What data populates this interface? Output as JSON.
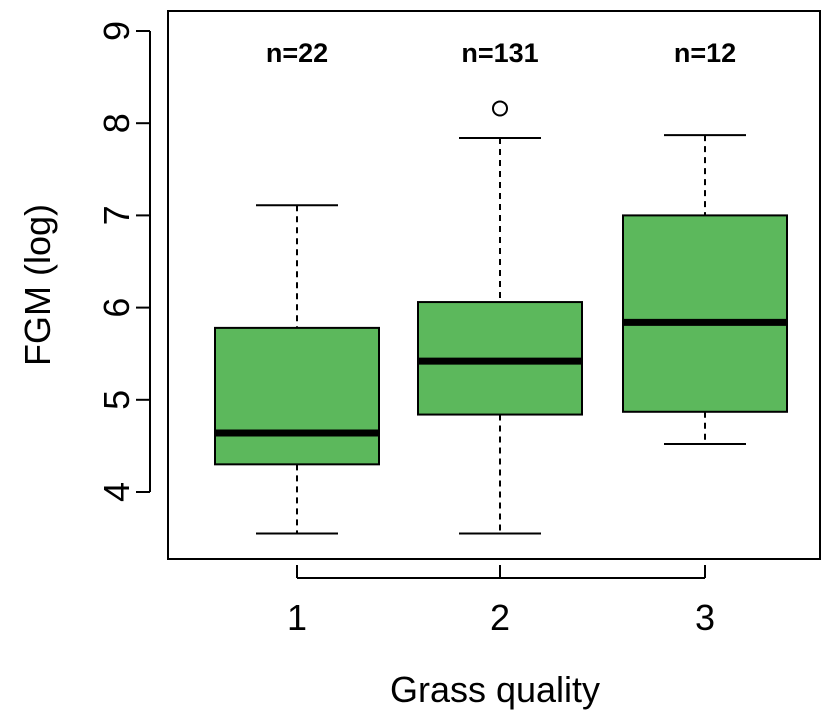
{
  "chart_data": {
    "type": "boxplot",
    "xlabel": "Grass quality",
    "ylabel": "FGM (log)",
    "categories": [
      "1",
      "2",
      "3"
    ],
    "ylim": [
      3.3,
      9.2
    ],
    "yticks": [
      "4",
      "5",
      "6",
      "7",
      "8",
      "9"
    ],
    "box_color": "#5cb85c",
    "grid": false,
    "boxes": [
      {
        "category": "1",
        "n_label": "n=22",
        "whisker_low": 3.55,
        "q1": 4.3,
        "median": 4.64,
        "q3": 5.78,
        "whisker_high": 7.11,
        "outliers": []
      },
      {
        "category": "2",
        "n_label": "n=131",
        "whisker_low": 3.55,
        "q1": 4.84,
        "median": 5.42,
        "q3": 6.06,
        "whisker_high": 7.84,
        "outliers": [
          8.16
        ]
      },
      {
        "category": "3",
        "n_label": "n=12",
        "whisker_low": 4.52,
        "q1": 4.87,
        "median": 5.84,
        "q3": 7.0,
        "whisker_high": 7.87,
        "outliers": []
      }
    ]
  }
}
